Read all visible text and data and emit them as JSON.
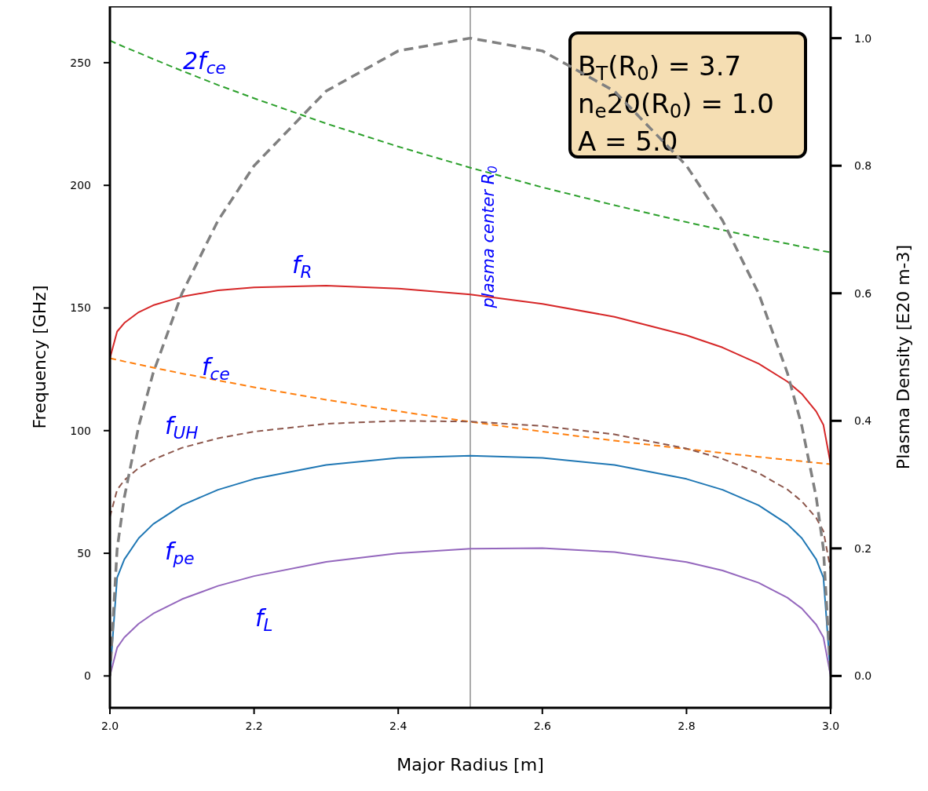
{
  "chart_data": {
    "type": "line",
    "xlabel": "Major Radius [m]",
    "ylabel": "Frequency [GHz]",
    "y2label": "Plasma Density [E20 m-3]",
    "x": [
      2.0,
      2.01,
      2.02,
      2.04,
      2.06,
      2.1,
      2.15,
      2.2,
      2.3,
      2.4,
      2.5,
      2.6,
      2.7,
      2.8,
      2.85,
      2.9,
      2.94,
      2.96,
      2.98,
      2.99,
      3.0
    ],
    "xlim": [
      2.0,
      3.0
    ],
    "xticks": [
      {
        "value": 2.0,
        "label": "2.0"
      },
      {
        "value": 2.2,
        "label": "2.2"
      },
      {
        "value": 2.4,
        "label": "2.4"
      },
      {
        "value": 2.6,
        "label": "2.6"
      },
      {
        "value": 2.8,
        "label": "2.8"
      },
      {
        "value": 3.0,
        "label": "3.0"
      }
    ],
    "ylim": [
      -13,
      273
    ],
    "yticks": [
      0,
      50,
      100,
      150,
      200,
      250
    ],
    "y2lim": [
      -0.05,
      1.05
    ],
    "y2ticks": [
      {
        "value": 0,
        "label": "0.0"
      },
      {
        "value": 0.2,
        "label": "0.2"
      },
      {
        "value": 0.4,
        "label": "0.4"
      },
      {
        "value": 0.6,
        "label": "0.6"
      },
      {
        "value": 0.8,
        "label": "0.8"
      },
      {
        "value": 1.0,
        "label": "1.0"
      }
    ],
    "grid": false,
    "series": [
      {
        "name": "f$_{pe}$",
        "color": "#1f77b4",
        "line_style": "solid",
        "values": [
          0,
          40.1,
          47.5,
          56.2,
          61.9,
          69.6,
          75.9,
          80.3,
          86.0,
          88.9,
          89.8,
          88.9,
          86.0,
          80.3,
          75.9,
          69.6,
          61.9,
          56.2,
          47.5,
          40.1,
          0
        ]
      },
      {
        "name": "f$_{ce}$",
        "color": "#ff7f0e",
        "line_style": "dashed",
        "values": [
          129.5,
          128.9,
          128.2,
          127.0,
          125.7,
          123.3,
          120.5,
          117.7,
          112.6,
          107.9,
          103.6,
          99.6,
          95.9,
          92.5,
          90.9,
          89.3,
          88.1,
          87.5,
          86.9,
          86.6,
          86.3
        ]
      },
      {
        "name": "2f$_{ce}$",
        "color": "#2ca02c",
        "line_style": "dashed",
        "values": [
          259,
          257.7,
          256.4,
          254.0,
          251.5,
          246.7,
          240.9,
          235.5,
          225.2,
          215.8,
          207.2,
          199.2,
          191.9,
          185.0,
          181.8,
          178.6,
          176.2,
          175.0,
          173.8,
          173.2,
          172.7
        ]
      },
      {
        "name": "f$_{R}$",
        "color": "#d62728",
        "line_style": "solid",
        "values": [
          129.5,
          140.4,
          143.9,
          148.3,
          151.1,
          154.6,
          157.2,
          158.4,
          159.1,
          157.9,
          155.5,
          151.7,
          146.4,
          138.9,
          133.9,
          127.3,
          120.0,
          115.0,
          107.8,
          102.3,
          86.3
        ]
      },
      {
        "name": "f$_{L}$",
        "color": "#9467bd",
        "line_style": "solid",
        "values": [
          0,
          11.5,
          15.7,
          21.3,
          25.4,
          31.3,
          36.7,
          40.7,
          46.5,
          50.0,
          51.9,
          52.1,
          50.5,
          46.4,
          43.0,
          38.0,
          31.9,
          27.5,
          20.9,
          15.7,
          0
        ]
      },
      {
        "name": "f$_{UH}$",
        "color": "#8c564b",
        "line_style": "dashed",
        "values": [
          64.8,
          75.9,
          79.8,
          84.8,
          88.2,
          93.0,
          96.9,
          99.6,
          102.8,
          104.0,
          103.7,
          101.9,
          98.5,
          92.7,
          88.5,
          82.7,
          76.0,
          71.2,
          64.4,
          59.0,
          43.2
        ]
      },
      {
        "color": "#808080",
        "line_style": "dashed",
        "axis": "y2",
        "values": [
          0,
          0.199,
          0.28,
          0.392,
          0.475,
          0.6,
          0.714,
          0.8,
          0.917,
          0.98,
          1.0,
          0.98,
          0.917,
          0.8,
          0.714,
          0.6,
          0.475,
          0.392,
          0.28,
          0.199,
          0
        ]
      }
    ],
    "ref_lines": [
      {
        "axis": "x",
        "value": 2.5,
        "label": "plasma center R$_{0}$",
        "color": "#aaaaaa"
      }
    ],
    "annotations": [
      "B$_{T}$(R$_{0}$) = 3.7",
      "n$_{e}$20(R$_{0}$) = 1.0",
      "A = 5.0"
    ]
  }
}
